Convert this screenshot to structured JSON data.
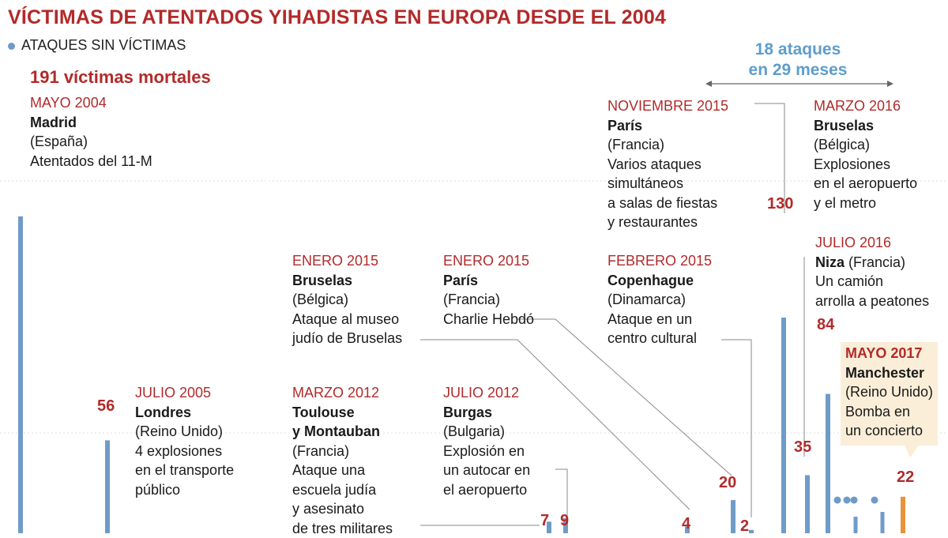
{
  "header": {
    "title": "VÍCTIMAS DE ATENTADOS YIHADISTAS EN EUROPA DESDE EL 2004",
    "legend_label": "ATAQUES SIN VÍCTIMAS",
    "period_line1": "18 ataques",
    "period_line2": "en 29 meses"
  },
  "madrid_total_label": "191 víctimas mortales",
  "colors": {
    "bar": "#6f9bc7",
    "highlight_bar": "#e8923a",
    "accent_red": "#b22a2a",
    "highlight_bg": "#fbeed8",
    "period_blue": "#5e9dcc"
  },
  "annotations": [
    {
      "date": "MAYO 2004",
      "city": "Madrid",
      "country": "(España)",
      "lines": [
        "Atentados del 11-M"
      ]
    },
    {
      "date": "JULIO 2005",
      "city": "Londres",
      "country": "(Reino Unido)",
      "lines": [
        "4 explosiones",
        "en el transporte",
        "público"
      ]
    },
    {
      "date": "MARZO 2012",
      "city": "Toulouse",
      "city2": "y Montauban",
      "country": "(Francia)",
      "lines": [
        "Ataque una",
        "escuela judía",
        "y asesinato",
        "de tres militares"
      ]
    },
    {
      "date": "JULIO 2012",
      "city": "Burgas",
      "country": "(Bulgaria)",
      "lines": [
        "Explosión en",
        "un autocar en",
        "el aeropuerto"
      ]
    },
    {
      "date": "ENERO 2015",
      "city": "Bruselas",
      "country": "(Bélgica)",
      "lines": [
        "Ataque al museo",
        "judío de Bruselas"
      ]
    },
    {
      "date": "ENERO 2015",
      "city": "París",
      "country": "(Francia)",
      "lines": [
        "Charlie Hebdó"
      ]
    },
    {
      "date": "FEBRERO 2015",
      "city": "Copenhague",
      "country": "(Dinamarca)",
      "lines": [
        "Ataque en un",
        "centro cultural"
      ]
    },
    {
      "date": "NOVIEMBRE 2015",
      "city": "París",
      "country": "(Francia)",
      "lines": [
        "Varios ataques",
        "simultáneos",
        "a salas de fiestas",
        "y restaurantes"
      ]
    },
    {
      "date": "MARZO 2016",
      "city": "Bruselas",
      "country": "(Bélgica)",
      "lines": [
        "Explosiones",
        "en el aeropuerto",
        "y el metro"
      ]
    },
    {
      "date": "JULIO 2016",
      "city": "Niza",
      "country_inline": " (Francia)",
      "lines": [
        "Un camión",
        "arrolla a peatones"
      ]
    },
    {
      "date": "MAYO 2017",
      "city": "Manchester",
      "country": "(Reino Unido)",
      "lines": [
        "Bomba en",
        "un concierto"
      ],
      "highlight": true
    }
  ],
  "chart_data": {
    "type": "bar",
    "title": "VÍCTIMAS DE ATENTADOS YIHADISTAS EN EUROPA DESDE EL 2004",
    "xlabel": "",
    "ylabel": "",
    "ylim": [
      0,
      191
    ],
    "grid": true,
    "legend": [
      {
        "label": "ATAQUES SIN VÍCTIMAS",
        "marker": "dot",
        "placement": "top-left"
      }
    ],
    "categories": [
      "MAYO 2004",
      "JULIO 2005",
      "MARZO 2012",
      "JULIO 2012",
      "ENERO 2015",
      "ENERO 2015",
      "FEBRERO 2015",
      "NOVIEMBRE 2015",
      "MARZO 2016",
      "JULIO 2016",
      "MAYO 2017"
    ],
    "values": [
      191,
      56,
      7,
      9,
      4,
      20,
      2,
      130,
      35,
      84,
      22
    ],
    "value_labels": [
      "",
      "56",
      "7",
      "9",
      "4",
      "20",
      "2",
      "130",
      "35",
      "84",
      "22"
    ],
    "attacks_without_victims": 4,
    "highlight": "MAYO 2017",
    "annotation": "18 ataques en 29 meses"
  }
}
